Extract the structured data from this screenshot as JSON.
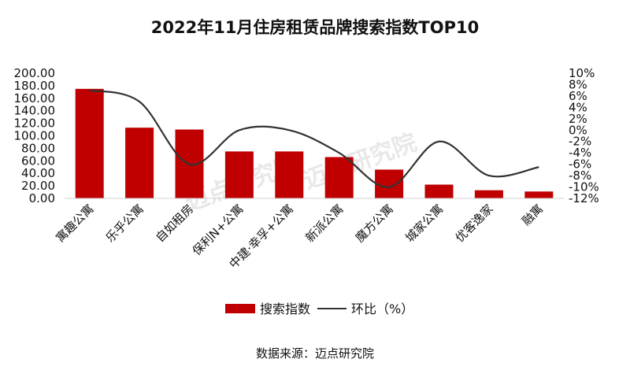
{
  "chart_data": {
    "type": "bar+line",
    "title": "2022年11月住房租赁品牌搜索指数TOP10",
    "categories": [
      "寓趣公寓",
      "乐乎公寓",
      "自如租房",
      "保利N+公寓",
      "中建·幸孚+公寓",
      "新派公寓",
      "魔方公寓",
      "城家公寓",
      "优客逸家",
      "融寓"
    ],
    "series": [
      {
        "name": "搜索指数",
        "kind": "bar",
        "axis": "left",
        "color": "#c00000",
        "values": [
          175,
          113,
          110,
          75,
          75,
          66,
          46,
          22,
          13,
          11
        ]
      },
      {
        "name": "环比（%）",
        "kind": "line",
        "axis": "right",
        "color": "#333333",
        "values": [
          7,
          5,
          -6,
          0,
          0,
          -4,
          -10,
          -2,
          -8,
          -6.5
        ]
      }
    ],
    "ylim": [
      0,
      200
    ],
    "y_ticks": [
      "0.00",
      "20.00",
      "40.00",
      "60.00",
      "80.00",
      "100.00",
      "120.00",
      "140.00",
      "160.00",
      "180.00",
      "200.00"
    ],
    "y2lim": [
      -12,
      10
    ],
    "y2_ticks": [
      "-12%",
      "-10%",
      "-8%",
      "-6%",
      "-4%",
      "-2%",
      "0%",
      "2%",
      "4%",
      "6%",
      "8%",
      "10%"
    ],
    "legend": {
      "position": "bottom",
      "items": [
        "搜索指数",
        "环比（%）"
      ]
    },
    "grid": false
  },
  "watermark": "迈点研究院",
  "source": "数据来源：迈点研究院"
}
